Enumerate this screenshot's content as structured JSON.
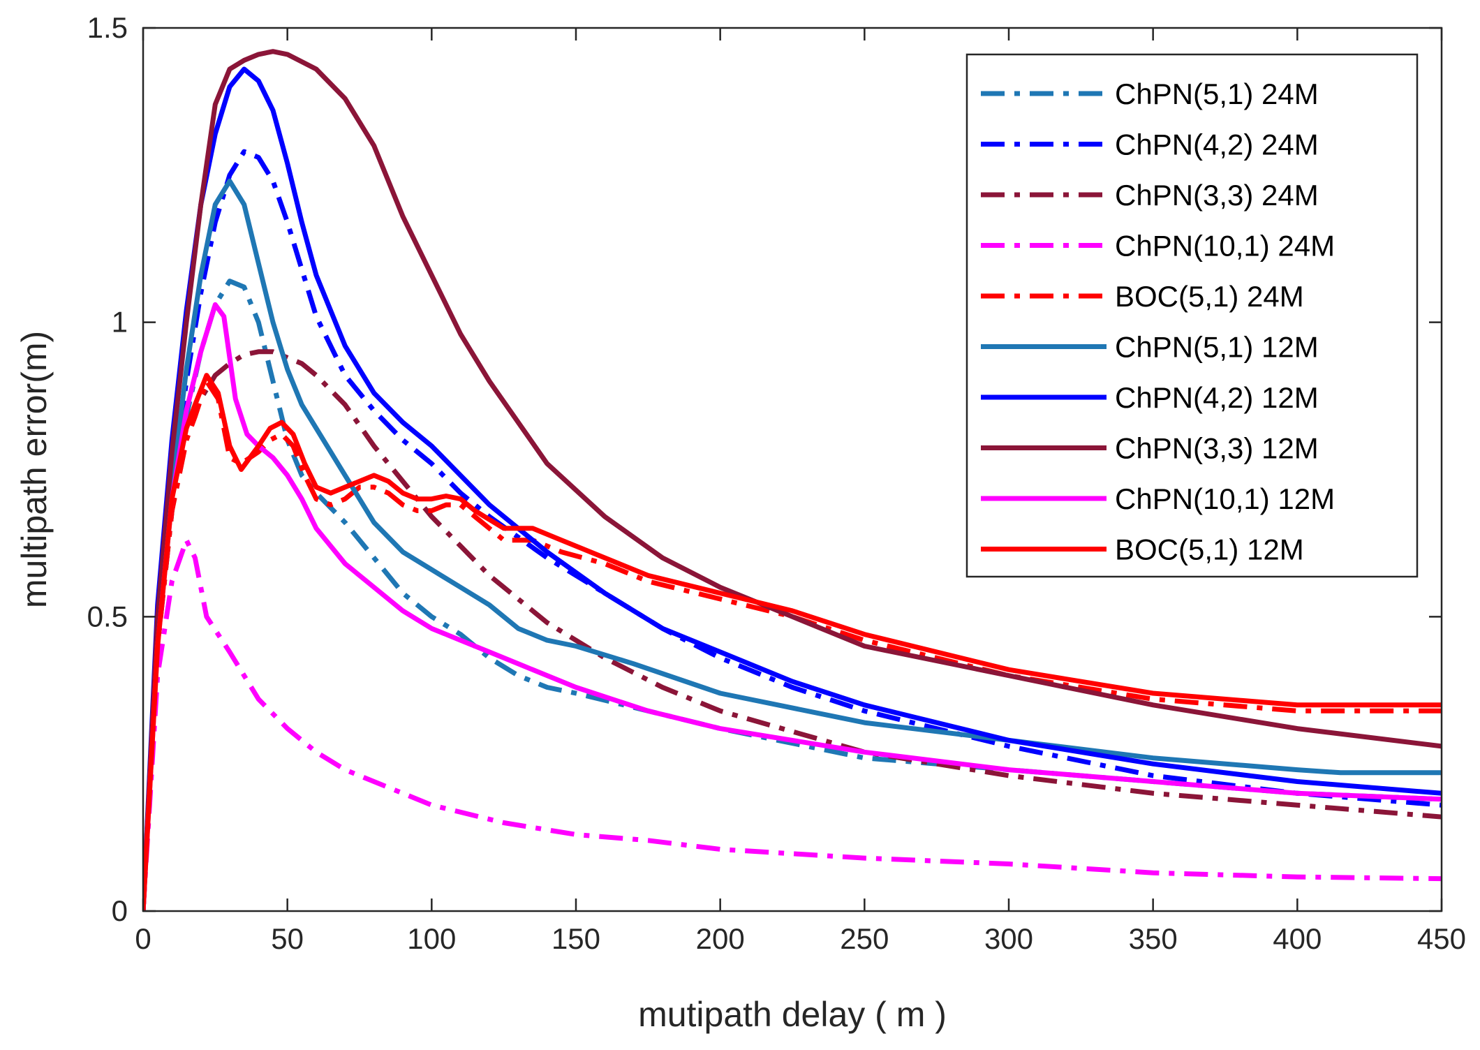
{
  "chart_data": {
    "type": "line",
    "title": "",
    "xlabel": "mutipath delay ( m )",
    "ylabel": "multipath error(m)",
    "xlim": [
      0,
      450
    ],
    "ylim": [
      0,
      1.5
    ],
    "grid": false,
    "legend_position": "top-right",
    "x_ticks": [
      "0",
      "50",
      "100",
      "150",
      "200",
      "250",
      "300",
      "350",
      "400",
      "450"
    ],
    "y_ticks": [
      "0",
      "0.5",
      "1",
      "1.5"
    ],
    "series": [
      {
        "name": "ChPN(5,1) 24M",
        "style": "dashdot",
        "color": "#1f77b4",
        "points": [
          [
            0,
            0
          ],
          [
            5,
            0.45
          ],
          [
            10,
            0.68
          ],
          [
            15,
            0.84
          ],
          [
            20,
            0.95
          ],
          [
            25,
            1.03
          ],
          [
            30,
            1.07
          ],
          [
            35,
            1.06
          ],
          [
            40,
            1.0
          ],
          [
            45,
            0.9
          ],
          [
            50,
            0.8
          ],
          [
            55,
            0.74
          ],
          [
            60,
            0.71
          ],
          [
            70,
            0.66
          ],
          [
            80,
            0.6
          ],
          [
            90,
            0.54
          ],
          [
            100,
            0.5
          ],
          [
            110,
            0.47
          ],
          [
            120,
            0.43
          ],
          [
            130,
            0.4
          ],
          [
            140,
            0.38
          ],
          [
            150,
            0.37
          ],
          [
            175,
            0.34
          ],
          [
            200,
            0.31
          ],
          [
            250,
            0.26
          ],
          [
            300,
            0.24
          ],
          [
            350,
            0.22
          ],
          [
            400,
            0.2
          ],
          [
            450,
            0.19
          ]
        ]
      },
      {
        "name": "ChPN(4,2) 24M",
        "style": "dashdot",
        "color": "#0000ff",
        "points": [
          [
            0,
            0
          ],
          [
            5,
            0.48
          ],
          [
            10,
            0.72
          ],
          [
            15,
            0.9
          ],
          [
            20,
            1.05
          ],
          [
            25,
            1.17
          ],
          [
            30,
            1.25
          ],
          [
            35,
            1.29
          ],
          [
            40,
            1.28
          ],
          [
            45,
            1.24
          ],
          [
            50,
            1.17
          ],
          [
            55,
            1.09
          ],
          [
            60,
            1.01
          ],
          [
            70,
            0.91
          ],
          [
            80,
            0.85
          ],
          [
            90,
            0.8
          ],
          [
            100,
            0.76
          ],
          [
            110,
            0.71
          ],
          [
            120,
            0.67
          ],
          [
            140,
            0.6
          ],
          [
            160,
            0.54
          ],
          [
            180,
            0.48
          ],
          [
            200,
            0.43
          ],
          [
            225,
            0.38
          ],
          [
            250,
            0.34
          ],
          [
            300,
            0.28
          ],
          [
            350,
            0.23
          ],
          [
            400,
            0.2
          ],
          [
            450,
            0.18
          ]
        ]
      },
      {
        "name": "ChPN(3,3) 24M",
        "style": "dashdot",
        "color": "#8b1538",
        "points": [
          [
            0,
            0
          ],
          [
            5,
            0.45
          ],
          [
            10,
            0.68
          ],
          [
            15,
            0.8
          ],
          [
            20,
            0.87
          ],
          [
            25,
            0.91
          ],
          [
            30,
            0.93
          ],
          [
            35,
            0.945
          ],
          [
            40,
            0.95
          ],
          [
            45,
            0.95
          ],
          [
            50,
            0.94
          ],
          [
            55,
            0.93
          ],
          [
            60,
            0.91
          ],
          [
            70,
            0.86
          ],
          [
            80,
            0.79
          ],
          [
            90,
            0.73
          ],
          [
            100,
            0.67
          ],
          [
            110,
            0.62
          ],
          [
            120,
            0.57
          ],
          [
            140,
            0.49
          ],
          [
            160,
            0.43
          ],
          [
            180,
            0.38
          ],
          [
            200,
            0.34
          ],
          [
            250,
            0.27
          ],
          [
            300,
            0.23
          ],
          [
            350,
            0.2
          ],
          [
            400,
            0.18
          ],
          [
            450,
            0.16
          ]
        ]
      },
      {
        "name": "ChPN(10,1) 24M",
        "style": "dashdot",
        "color": "#ff00ff",
        "points": [
          [
            0,
            0
          ],
          [
            5,
            0.4
          ],
          [
            10,
            0.56
          ],
          [
            15,
            0.63
          ],
          [
            18,
            0.6
          ],
          [
            22,
            0.5
          ],
          [
            30,
            0.44
          ],
          [
            40,
            0.36
          ],
          [
            50,
            0.31
          ],
          [
            60,
            0.27
          ],
          [
            70,
            0.24
          ],
          [
            80,
            0.22
          ],
          [
            90,
            0.2
          ],
          [
            100,
            0.18
          ],
          [
            125,
            0.15
          ],
          [
            150,
            0.13
          ],
          [
            175,
            0.12
          ],
          [
            200,
            0.105
          ],
          [
            250,
            0.09
          ],
          [
            300,
            0.08
          ],
          [
            350,
            0.065
          ],
          [
            400,
            0.058
          ],
          [
            450,
            0.055
          ]
        ]
      },
      {
        "name": "BOC(5,1) 24M",
        "style": "dashdot",
        "color": "#ff0000",
        "points": [
          [
            0,
            0
          ],
          [
            5,
            0.45
          ],
          [
            10,
            0.68
          ],
          [
            15,
            0.8
          ],
          [
            18,
            0.84
          ],
          [
            22,
            0.9
          ],
          [
            26,
            0.87
          ],
          [
            30,
            0.77
          ],
          [
            34,
            0.76
          ],
          [
            40,
            0.78
          ],
          [
            44,
            0.8
          ],
          [
            48,
            0.81
          ],
          [
            52,
            0.79
          ],
          [
            56,
            0.74
          ],
          [
            60,
            0.7
          ],
          [
            65,
            0.69
          ],
          [
            70,
            0.7
          ],
          [
            75,
            0.72
          ],
          [
            80,
            0.72
          ],
          [
            85,
            0.71
          ],
          [
            90,
            0.69
          ],
          [
            95,
            0.68
          ],
          [
            100,
            0.68
          ],
          [
            105,
            0.69
          ],
          [
            110,
            0.69
          ],
          [
            115,
            0.67
          ],
          [
            125,
            0.63
          ],
          [
            135,
            0.63
          ],
          [
            145,
            0.61
          ],
          [
            160,
            0.59
          ],
          [
            175,
            0.56
          ],
          [
            200,
            0.53
          ],
          [
            225,
            0.5
          ],
          [
            250,
            0.46
          ],
          [
            300,
            0.4
          ],
          [
            350,
            0.36
          ],
          [
            400,
            0.34
          ],
          [
            450,
            0.34
          ]
        ]
      },
      {
        "name": "ChPN(5,1) 12M",
        "style": "solid",
        "color": "#1f77b4",
        "points": [
          [
            0,
            0
          ],
          [
            5,
            0.48
          ],
          [
            10,
            0.72
          ],
          [
            15,
            0.92
          ],
          [
            20,
            1.08
          ],
          [
            25,
            1.2
          ],
          [
            30,
            1.24
          ],
          [
            35,
            1.2
          ],
          [
            40,
            1.1
          ],
          [
            45,
            1.0
          ],
          [
            50,
            0.92
          ],
          [
            55,
            0.86
          ],
          [
            60,
            0.82
          ],
          [
            70,
            0.74
          ],
          [
            80,
            0.66
          ],
          [
            90,
            0.61
          ],
          [
            100,
            0.58
          ],
          [
            110,
            0.55
          ],
          [
            120,
            0.52
          ],
          [
            130,
            0.48
          ],
          [
            140,
            0.46
          ],
          [
            150,
            0.45
          ],
          [
            170,
            0.42
          ],
          [
            200,
            0.37
          ],
          [
            250,
            0.32
          ],
          [
            300,
            0.29
          ],
          [
            350,
            0.26
          ],
          [
            400,
            0.24
          ],
          [
            415,
            0.235
          ],
          [
            450,
            0.235
          ]
        ]
      },
      {
        "name": "ChPN(4,2) 12M",
        "style": "solid",
        "color": "#0000ff",
        "points": [
          [
            0,
            0
          ],
          [
            5,
            0.52
          ],
          [
            10,
            0.8
          ],
          [
            15,
            1.02
          ],
          [
            20,
            1.2
          ],
          [
            25,
            1.32
          ],
          [
            30,
            1.4
          ],
          [
            35,
            1.43
          ],
          [
            40,
            1.41
          ],
          [
            45,
            1.36
          ],
          [
            50,
            1.27
          ],
          [
            55,
            1.17
          ],
          [
            60,
            1.08
          ],
          [
            70,
            0.96
          ],
          [
            80,
            0.88
          ],
          [
            90,
            0.83
          ],
          [
            100,
            0.79
          ],
          [
            110,
            0.74
          ],
          [
            120,
            0.69
          ],
          [
            140,
            0.61
          ],
          [
            160,
            0.54
          ],
          [
            180,
            0.48
          ],
          [
            200,
            0.44
          ],
          [
            225,
            0.39
          ],
          [
            250,
            0.35
          ],
          [
            300,
            0.29
          ],
          [
            350,
            0.25
          ],
          [
            400,
            0.22
          ],
          [
            450,
            0.2
          ]
        ]
      },
      {
        "name": "ChPN(3,3) 12M",
        "style": "solid",
        "color": "#8b1538",
        "points": [
          [
            0,
            0
          ],
          [
            5,
            0.5
          ],
          [
            10,
            0.78
          ],
          [
            15,
            1.0
          ],
          [
            20,
            1.2
          ],
          [
            25,
            1.37
          ],
          [
            30,
            1.43
          ],
          [
            35,
            1.445
          ],
          [
            40,
            1.455
          ],
          [
            45,
            1.46
          ],
          [
            50,
            1.455
          ],
          [
            60,
            1.43
          ],
          [
            70,
            1.38
          ],
          [
            80,
            1.3
          ],
          [
            90,
            1.18
          ],
          [
            100,
            1.08
          ],
          [
            110,
            0.98
          ],
          [
            120,
            0.9
          ],
          [
            140,
            0.76
          ],
          [
            160,
            0.67
          ],
          [
            180,
            0.6
          ],
          [
            200,
            0.55
          ],
          [
            225,
            0.5
          ],
          [
            250,
            0.45
          ],
          [
            300,
            0.4
          ],
          [
            350,
            0.35
          ],
          [
            400,
            0.31
          ],
          [
            450,
            0.28
          ]
        ]
      },
      {
        "name": "ChPN(10,1) 12M",
        "style": "solid",
        "color": "#ff00ff",
        "points": [
          [
            0,
            0
          ],
          [
            5,
            0.45
          ],
          [
            10,
            0.7
          ],
          [
            15,
            0.85
          ],
          [
            20,
            0.95
          ],
          [
            25,
            1.03
          ],
          [
            28,
            1.01
          ],
          [
            32,
            0.87
          ],
          [
            36,
            0.81
          ],
          [
            40,
            0.79
          ],
          [
            45,
            0.77
          ],
          [
            50,
            0.74
          ],
          [
            55,
            0.7
          ],
          [
            60,
            0.65
          ],
          [
            70,
            0.59
          ],
          [
            80,
            0.55
          ],
          [
            90,
            0.51
          ],
          [
            100,
            0.48
          ],
          [
            110,
            0.46
          ],
          [
            120,
            0.44
          ],
          [
            130,
            0.42
          ],
          [
            150,
            0.38
          ],
          [
            175,
            0.34
          ],
          [
            200,
            0.31
          ],
          [
            250,
            0.27
          ],
          [
            300,
            0.24
          ],
          [
            350,
            0.22
          ],
          [
            400,
            0.2
          ],
          [
            450,
            0.19
          ]
        ]
      },
      {
        "name": "BOC(5,1) 12M",
        "style": "solid",
        "color": "#ff0000",
        "points": [
          [
            0,
            0
          ],
          [
            5,
            0.45
          ],
          [
            10,
            0.7
          ],
          [
            15,
            0.82
          ],
          [
            18,
            0.86
          ],
          [
            22,
            0.91
          ],
          [
            26,
            0.88
          ],
          [
            30,
            0.79
          ],
          [
            34,
            0.75
          ],
          [
            40,
            0.79
          ],
          [
            44,
            0.82
          ],
          [
            48,
            0.83
          ],
          [
            52,
            0.81
          ],
          [
            56,
            0.76
          ],
          [
            60,
            0.72
          ],
          [
            65,
            0.71
          ],
          [
            70,
            0.72
          ],
          [
            75,
            0.73
          ],
          [
            80,
            0.74
          ],
          [
            85,
            0.73
          ],
          [
            90,
            0.71
          ],
          [
            95,
            0.7
          ],
          [
            100,
            0.7
          ],
          [
            105,
            0.705
          ],
          [
            110,
            0.7
          ],
          [
            115,
            0.68
          ],
          [
            125,
            0.65
          ],
          [
            135,
            0.65
          ],
          [
            145,
            0.63
          ],
          [
            160,
            0.6
          ],
          [
            175,
            0.57
          ],
          [
            200,
            0.54
          ],
          [
            225,
            0.51
          ],
          [
            250,
            0.47
          ],
          [
            300,
            0.41
          ],
          [
            350,
            0.37
          ],
          [
            400,
            0.35
          ],
          [
            450,
            0.35
          ]
        ]
      }
    ]
  }
}
